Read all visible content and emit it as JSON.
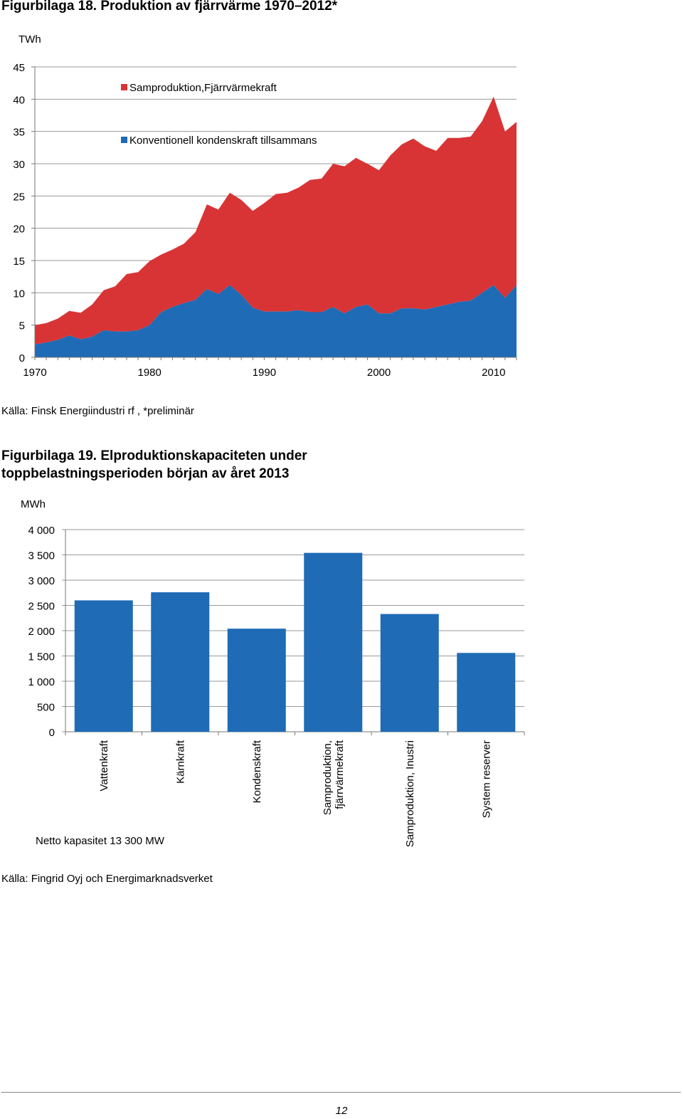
{
  "figure18": {
    "heading": "Figurbilaga 18. Produktion av fjärrvärme 1970–2012*",
    "source": "Källa: Finsk Energiindustri rf , *preliminär"
  },
  "figure19": {
    "heading_line1": "Figurbilaga 19. Elproduktionskapaciteten under",
    "heading_line2": "toppbelastningsperioden början av året 2013",
    "note": "Netto kapasitet 13 300 MW",
    "source": "Källa: Fingrid Oyj och Energimarknadsverket"
  },
  "page_number": "12",
  "chart_data": [
    {
      "type": "area",
      "stacked": true,
      "ylabel": "TWh",
      "ylim": [
        0,
        45
      ],
      "yticks": [
        0,
        5,
        10,
        15,
        20,
        25,
        30,
        35,
        40,
        45
      ],
      "xlim": [
        1970,
        2012
      ],
      "xticks": [
        1970,
        1980,
        1990,
        2000,
        2010
      ],
      "legend_position": "top-left",
      "x": [
        1970,
        1971,
        1972,
        1973,
        1974,
        1975,
        1976,
        1977,
        1978,
        1979,
        1980,
        1981,
        1982,
        1983,
        1984,
        1985,
        1986,
        1987,
        1988,
        1989,
        1990,
        1991,
        1992,
        1993,
        1994,
        1995,
        1996,
        1997,
        1998,
        1999,
        2000,
        2001,
        2002,
        2003,
        2004,
        2005,
        2006,
        2007,
        2008,
        2009,
        2010,
        2011,
        2012
      ],
      "series": [
        {
          "name": "Konventionell kondenskraft tillsammans",
          "color": "#1f6bb5",
          "values": [
            2.0,
            2.3,
            2.7,
            3.4,
            2.8,
            3.2,
            4.2,
            4.0,
            4.0,
            4.2,
            5.0,
            7.0,
            7.8,
            8.4,
            8.9,
            10.6,
            9.8,
            11.2,
            9.7,
            7.7,
            7.1,
            7.1,
            7.1,
            7.3,
            7.0,
            7.0,
            7.8,
            6.8,
            7.8,
            8.2,
            6.8,
            6.8,
            7.6,
            7.6,
            7.4,
            7.8,
            8.2,
            8.6,
            8.8,
            10.0,
            11.2,
            9.2,
            11.2
          ]
        },
        {
          "name": "Samproduktion,Fjärrvärmekraft",
          "color": "#d93435",
          "values": [
            3.0,
            3.0,
            3.3,
            3.8,
            4.1,
            5.0,
            6.2,
            7.0,
            8.9,
            9.0,
            9.9,
            8.9,
            8.9,
            9.2,
            10.5,
            13.1,
            13.1,
            14.3,
            14.7,
            15.0,
            16.8,
            18.2,
            18.4,
            19.0,
            20.5,
            20.7,
            22.2,
            22.8,
            23.1,
            21.8,
            22.2,
            24.5,
            25.4,
            26.3,
            25.3,
            24.2,
            25.8,
            25.4,
            25.4,
            26.6,
            29.2,
            25.8,
            25.3
          ]
        }
      ]
    },
    {
      "type": "bar",
      "ylabel": "MWh",
      "ylim": [
        0,
        4000
      ],
      "yticks": [
        "0",
        "500",
        "1 000",
        "1 500",
        "2 000",
        "2 500",
        "3 000",
        "3 500",
        "4 000"
      ],
      "categories": [
        "Vattenkraft",
        "Kärnkraft",
        "Kondenskraft",
        "Samproduktion, fjärrvärmekraft",
        "Samproduktion, Inustri",
        "System reserver"
      ],
      "category_lines": [
        [
          "Vattenkraft"
        ],
        [
          "Kärnkraft"
        ],
        [
          "Kondenskraft"
        ],
        [
          "Samproduktion,",
          "fjärrvärmekraft"
        ],
        [
          "Samproduktion, Inustri"
        ],
        [
          "System reserver"
        ]
      ],
      "values": [
        2600,
        2760,
        2040,
        3540,
        2330,
        1560
      ],
      "color": "#1f6bb5"
    }
  ]
}
